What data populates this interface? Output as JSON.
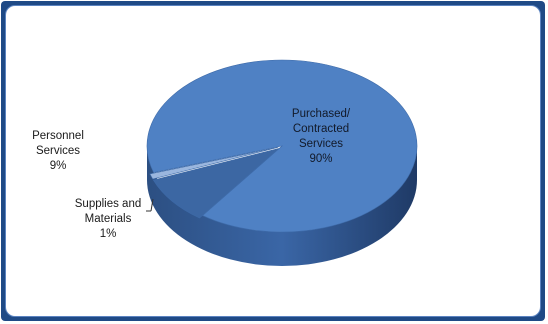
{
  "chart_data": {
    "type": "pie",
    "title": "",
    "slices": [
      {
        "label": "Purchased/\nContracted\nServices",
        "value": 90,
        "value_label": "90%",
        "color": "#4f81c4"
      },
      {
        "label": "Personnel\nServices",
        "value": 9,
        "value_label": "9%",
        "color": "#3c67a3"
      },
      {
        "label": "Supplies and\nMaterials",
        "value": 1,
        "value_label": "1%",
        "color": "#9ab6de"
      }
    ],
    "legend": "none",
    "style": "3d-exploded"
  }
}
